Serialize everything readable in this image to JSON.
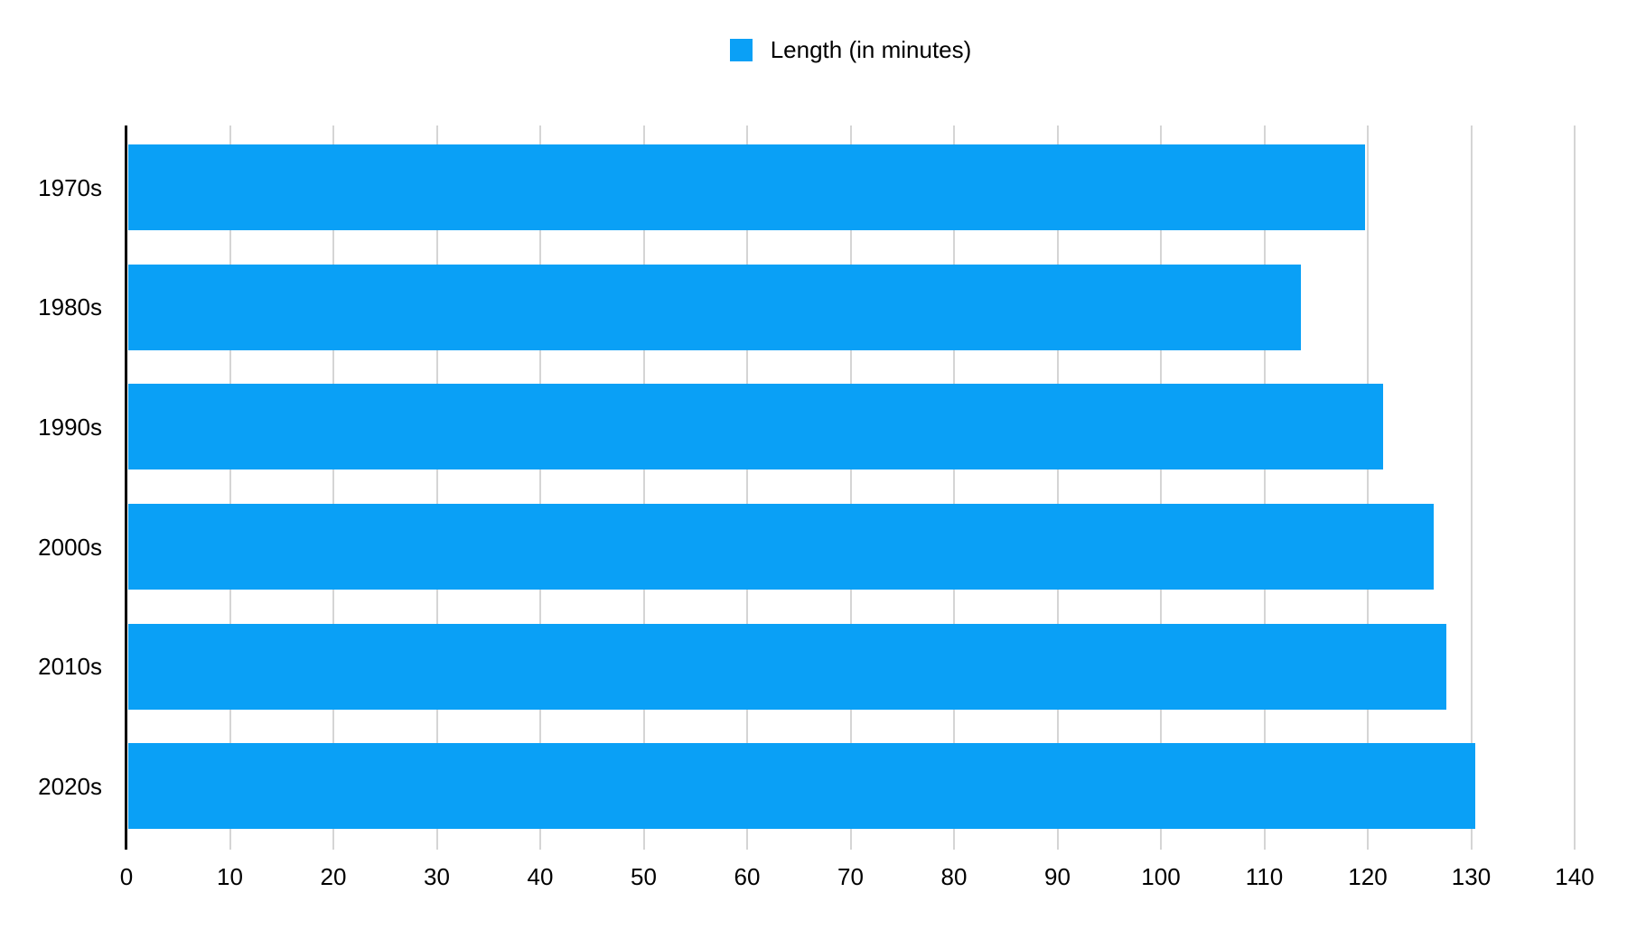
{
  "legend": {
    "label": "Length (in minutes)"
  },
  "chart_data": {
    "type": "bar",
    "orientation": "horizontal",
    "title": "",
    "xlabel": "",
    "ylabel": "",
    "categories": [
      "1970s",
      "1980s",
      "1990s",
      "2000s",
      "2010s",
      "2020s"
    ],
    "series": [
      {
        "name": "Length (in minutes)",
        "values": [
          119.6,
          113.4,
          121.3,
          126.2,
          127.4,
          130.2
        ]
      }
    ],
    "xlim": [
      0,
      140
    ],
    "x_ticks": [
      0,
      10,
      20,
      30,
      40,
      50,
      60,
      70,
      80,
      90,
      100,
      110,
      120,
      130,
      140
    ],
    "grid": "vertical-gridlines-on",
    "legend_position": "top-center",
    "colors": {
      "bar": "#0aa0f6",
      "gridline": "#d5d5d5",
      "axis": "#000000",
      "text": "#000000",
      "background": "#ffffff"
    }
  }
}
